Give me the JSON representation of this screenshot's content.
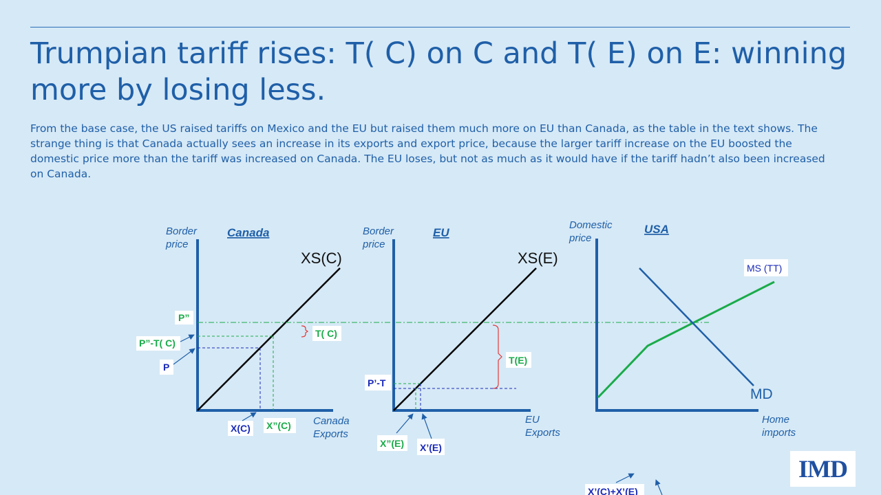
{
  "title": "Trumpian tariff rises: T( C) on C and T( E) on E: winning more by losing less.",
  "subtitle": "From the base case, the US raised tariffs on Mexico and the EU but raised them much more on EU than Canada, as the table in the text shows. The strange thing is that Canada actually sees an increase in its exports and export price, because the larger tariff increase on the EU boosted the domestic price more than the tariff was increased on Canada. The EU loses, but not as much as it would have if the tariff hadn’t also been increased on Canada.",
  "colors": {
    "background": "#d6e9f6",
    "title": "#1f5fa8",
    "axis": "#1f5fa8",
    "supply_line": "#000000",
    "green": "#1aab4a",
    "blue_label": "#1a2ab8",
    "bracket": "#e23a3a"
  },
  "canada": {
    "heading": "Canada",
    "y_axis_label_1": "Border",
    "y_axis_label_2": "price",
    "x_axis_label_1": "Canada",
    "x_axis_label_2": "Exports",
    "curve_label": "XS(C)",
    "labels": {
      "p_double": "P”",
      "p_double_minus_t": "P”-T( C)",
      "p": "P",
      "t_c": "T( C)",
      "x_c": "X(C)",
      "x_double_c": "X”(C)"
    }
  },
  "eu": {
    "heading": "EU",
    "y_axis_label_1": "Border",
    "y_axis_label_2": "price",
    "x_axis_label_1": "EU",
    "x_axis_label_2": "Exports",
    "curve_label": "XS(E)",
    "labels": {
      "p_prime_minus_t": "P’-T",
      "t_e": "T(E)",
      "x_double_e": "X”(E)",
      "x_prime_e": "X’(E)"
    }
  },
  "usa": {
    "heading": "USA",
    "y_axis_label_1": "Domestic",
    "y_axis_label_2": "price",
    "x_axis_label_1": "Home",
    "x_axis_label_2": "imports",
    "ms_label": "MS (TT)",
    "md_label": "MD",
    "sum_label": "X’(C)+X’(E)"
  },
  "logo_text": "IMD"
}
